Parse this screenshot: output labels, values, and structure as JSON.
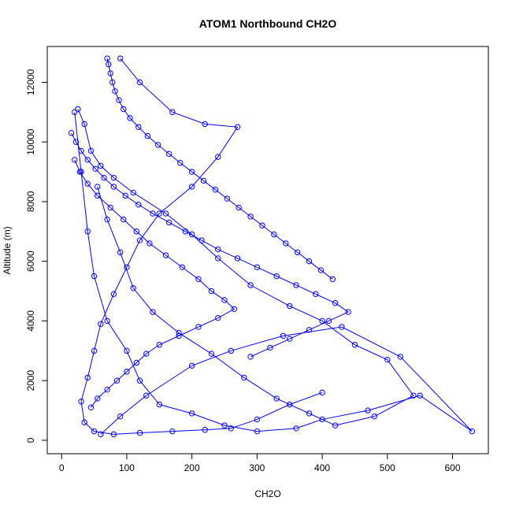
{
  "chart_data": {
    "type": "line",
    "title": "ATOM1 Northbound CH2O",
    "xlabel": "CH2O",
    "ylabel": "Altitude (m)",
    "xlim": [
      0,
      650
    ],
    "ylim": [
      0,
      13000
    ],
    "x_ticks": [
      0,
      100,
      200,
      300,
      400,
      500,
      600
    ],
    "y_ticks": [
      0,
      2000,
      4000,
      6000,
      8000,
      10000,
      12000
    ],
    "grid": false,
    "legend": "none",
    "marker": "open-circle",
    "color": "#0000ff",
    "series": [
      {
        "x": [
          60,
          90,
          130,
          200,
          260,
          340,
          430,
          520,
          630,
          550,
          470,
          400,
          360,
          300,
          250,
          200,
          150,
          120,
          100,
          70,
          50,
          40,
          30,
          20
        ],
        "y": [
          200,
          800,
          1500,
          2500,
          3000,
          3500,
          3800,
          2800,
          300,
          1500,
          1000,
          700,
          400,
          300,
          500,
          900,
          1200,
          2000,
          3000,
          4000,
          5500,
          7000,
          9000,
          11000
        ]
      },
      {
        "x": [
          25,
          35,
          45,
          60,
          80,
          110,
          160,
          200,
          240,
          290,
          350,
          400,
          450,
          500,
          540,
          480,
          420,
          380,
          330,
          280,
          230,
          180,
          140,
          110,
          90,
          70,
          55
        ],
        "y": [
          11100,
          10600,
          9700,
          9200,
          8800,
          8300,
          7600,
          6900,
          6100,
          5200,
          4500,
          4000,
          3200,
          2700,
          1500,
          800,
          500,
          900,
          1400,
          2100,
          2900,
          3600,
          4300,
          5100,
          6300,
          7400,
          8500
        ]
      },
      {
        "x": [
          90,
          120,
          170,
          220,
          270,
          240,
          200,
          150,
          120,
          100,
          80,
          60,
          50,
          40,
          30,
          35,
          50,
          80,
          120,
          170,
          220,
          260,
          300,
          350,
          400
        ],
        "y": [
          12800,
          12000,
          11000,
          10600,
          10500,
          9500,
          8500,
          7600,
          6700,
          5800,
          4900,
          3900,
          3000,
          2100,
          1300,
          600,
          300,
          200,
          250,
          300,
          350,
          400,
          700,
          1200,
          1600
        ]
      },
      {
        "x": [
          20,
          28,
          40,
          55,
          75,
          95,
          115,
          135,
          160,
          185,
          210,
          230,
          250,
          265,
          240,
          210,
          180,
          150,
          130,
          115,
          100,
          85,
          70,
          55,
          45
        ],
        "y": [
          9400,
          9000,
          8600,
          8200,
          7800,
          7400,
          7000,
          6600,
          6200,
          5800,
          5400,
          5000,
          4700,
          4400,
          4100,
          3800,
          3500,
          3200,
          2900,
          2600,
          2300,
          2000,
          1700,
          1400,
          1100
        ]
      },
      {
        "x": [
          15,
          22,
          30,
          40,
          52,
          65,
          80,
          98,
          118,
          140,
          165,
          190,
          215,
          240,
          270,
          300,
          330,
          360,
          390,
          420,
          440,
          410,
          380,
          350,
          320,
          290
        ],
        "y": [
          10300,
          10000,
          9700,
          9400,
          9100,
          8800,
          8500,
          8200,
          7900,
          7600,
          7300,
          7000,
          6700,
          6400,
          6100,
          5800,
          5500,
          5200,
          4900,
          4600,
          4300,
          4000,
          3700,
          3400,
          3100,
          2800
        ]
      },
      {
        "x": [
          70,
          72,
          75,
          78,
          82,
          88,
          95,
          105,
          118,
          132,
          148,
          165,
          182,
          200,
          218,
          236,
          254,
          272,
          290,
          308,
          326,
          344,
          362,
          380,
          398,
          416
        ],
        "y": [
          12800,
          12600,
          12300,
          12000,
          11700,
          11400,
          11100,
          10800,
          10500,
          10200,
          9900,
          9600,
          9300,
          9000,
          8700,
          8400,
          8100,
          7800,
          7500,
          7200,
          6900,
          6600,
          6300,
          6000,
          5700,
          5400
        ]
      }
    ]
  }
}
